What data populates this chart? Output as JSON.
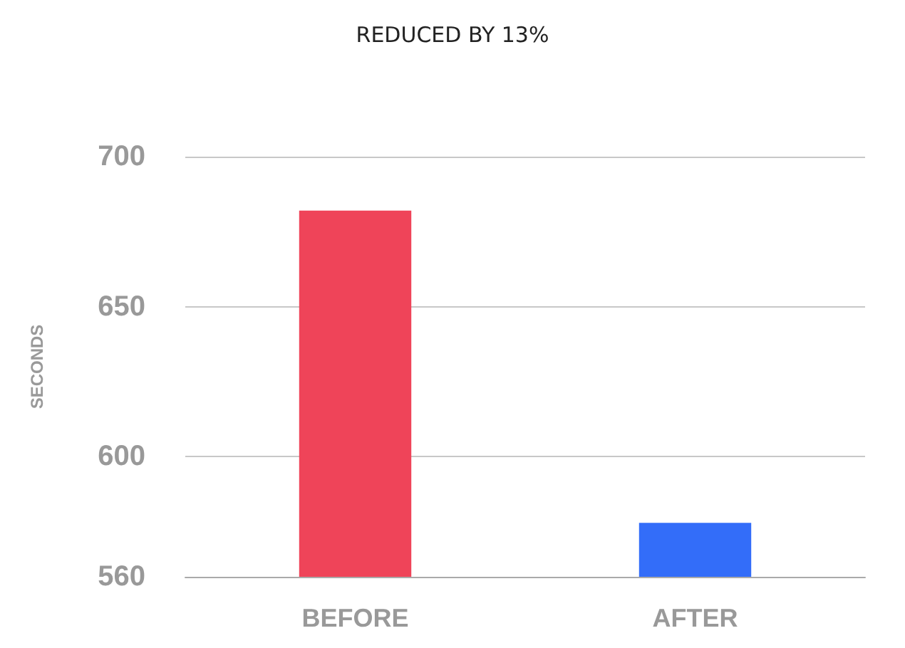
{
  "chart_data": {
    "type": "bar",
    "subtitle": "REDUCED BY 13%",
    "ylabel": "SECONDS",
    "categories": [
      "BEFORE",
      "AFTER"
    ],
    "values": [
      682,
      578
    ],
    "colors": [
      "#ef4459",
      "#336df9"
    ],
    "ylim": [
      560,
      700
    ],
    "yticks": [
      560,
      600,
      650,
      700
    ],
    "grid": "y"
  }
}
